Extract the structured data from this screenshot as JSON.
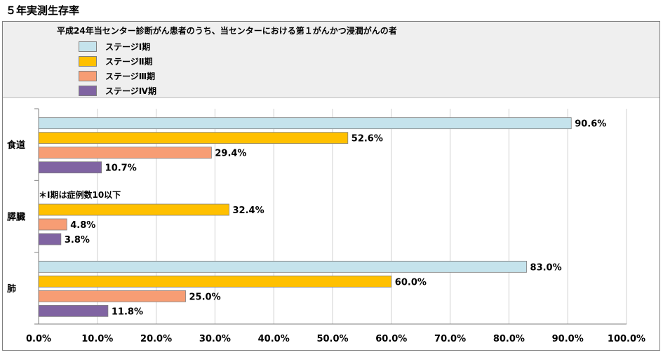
{
  "page_title": "５年実測生存率",
  "chart_data": {
    "type": "bar",
    "orientation": "horizontal",
    "title": "平成24年当センター診断がん患者のうち、当センターにおける第１がんかつ浸潤がんの者",
    "categories": [
      "食道",
      "膵臓",
      "肺"
    ],
    "series": [
      {
        "name": "ステージⅠ期",
        "color": "#c5e3ec",
        "values": [
          90.6,
          null,
          83.0
        ],
        "labels": [
          "90.6%",
          "",
          "83.0%"
        ]
      },
      {
        "name": "ステージⅡ期",
        "color": "#ffc000",
        "values": [
          52.6,
          32.4,
          60.0
        ],
        "labels": [
          "52.6%",
          "32.4%",
          "60.0%"
        ]
      },
      {
        "name": "ステージⅢ期",
        "color": "#f79d74",
        "values": [
          29.4,
          4.8,
          25.0
        ],
        "labels": [
          "29.4%",
          "4.8%",
          "25.0%"
        ]
      },
      {
        "name": "ステージⅣ期",
        "color": "#8064a2",
        "values": [
          10.7,
          3.8,
          11.8
        ],
        "labels": [
          "10.7%",
          "3.8%",
          "11.8%"
        ]
      }
    ],
    "xlim": [
      0,
      100
    ],
    "x_ticks": [
      "0.0%",
      "10.0%",
      "20.0%",
      "30.0%",
      "40.0%",
      "50.0%",
      "60.0%",
      "70.0%",
      "80.0%",
      "90.0%",
      "100.0%"
    ],
    "annotations": [
      {
        "category": "膵臓",
        "text": "＊Ⅰ期は症例数10以下"
      }
    ],
    "grid": true,
    "legend_position": "top"
  }
}
